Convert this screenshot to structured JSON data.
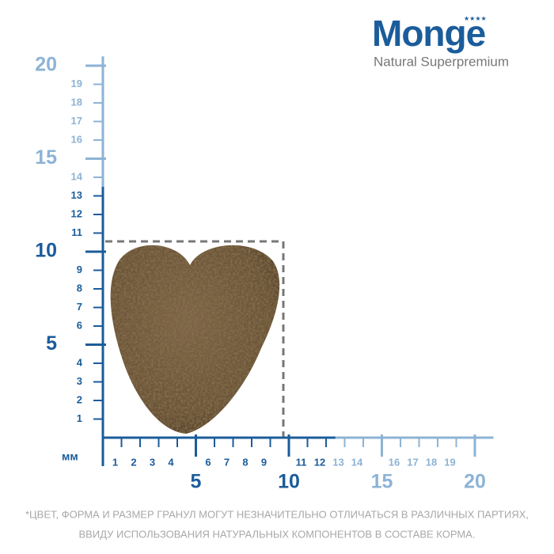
{
  "brand": {
    "name": "Monge",
    "tagline": "Natural Superpremium",
    "color": "#1b5c9b"
  },
  "ruler": {
    "unit": "мм",
    "y_axis": [
      {
        "color": "#1b5c9b",
        "minor": [
          1,
          2,
          3,
          4,
          6,
          7,
          8,
          9,
          11,
          12,
          13
        ],
        "major": [
          5,
          10
        ]
      },
      {
        "color": "#8db3d5",
        "minor": [
          14,
          16,
          17,
          18,
          19
        ],
        "major": [
          15,
          20
        ]
      }
    ],
    "x_axis": [
      {
        "color": "#1b5c9b",
        "minor": [
          1,
          2,
          3,
          4,
          6,
          7,
          8,
          9,
          11,
          12
        ],
        "major": [
          5,
          10
        ]
      },
      {
        "color": "#8db3d5",
        "minor": [
          13,
          14,
          16,
          17,
          18,
          19
        ],
        "major": [
          15,
          20
        ]
      }
    ]
  },
  "footnote": [
    "*ЦВЕТ, ФОРМА И РАЗМЕР ГРАНУЛ МОГУТ НЕЗНАЧИТЕЛЬНО ОТЛИЧАТЬСЯ В РАЗЛИЧНЫХ ПАРТИЯХ,",
    "ВВИДУ ИСПОЛЬЗОВАНИЯ НАТУРАЛЬНЫХ КОМПОНЕНТОВ В СОСТАВЕ КОРМА."
  ]
}
